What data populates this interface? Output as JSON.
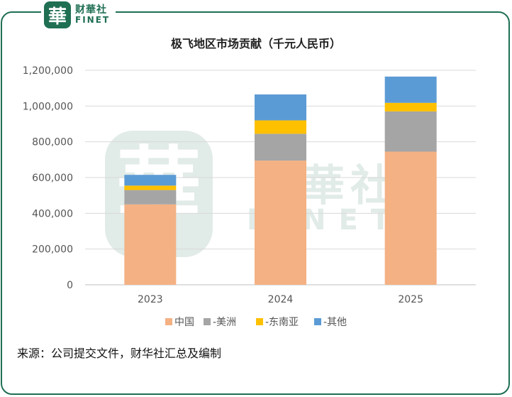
{
  "brand": {
    "seal_char": "華",
    "name_cn": "财華社",
    "name_en": "FINET"
  },
  "watermark": {
    "seal_char": "華",
    "name_cn": "財華社",
    "name_en": "FINET"
  },
  "source_note": "来源：公司提交文件，财华社汇总及编制",
  "colors": {
    "frame": "#1f6f53",
    "china": "#f4b183",
    "americas": "#a5a5a5",
    "sea": "#ffc000",
    "other": "#5b9bd5"
  },
  "chart_data": {
    "type": "bar",
    "stacked": true,
    "title": "极飞地区市场贡献（千元人民币）",
    "categories": [
      "2023",
      "2024",
      "2025"
    ],
    "series": [
      {
        "name": "中国",
        "color": "#f4b183",
        "values": [
          450000,
          695000,
          745000
        ]
      },
      {
        "name": "-美洲",
        "color": "#a5a5a5",
        "values": [
          80000,
          150000,
          225000
        ]
      },
      {
        "name": "-东南亚",
        "color": "#ffc000",
        "values": [
          25000,
          75000,
          48000
        ]
      },
      {
        "name": "-其他",
        "color": "#5b9bd5",
        "values": [
          60000,
          145000,
          147000
        ]
      }
    ],
    "ylim": [
      0,
      1200000
    ],
    "yticks": [
      "0",
      "200,000",
      "400,000",
      "600,000",
      "800,000",
      "1,000,000",
      "1,200,000"
    ],
    "xlabel": "",
    "ylabel": "",
    "grid": true,
    "legend": "bottom"
  }
}
